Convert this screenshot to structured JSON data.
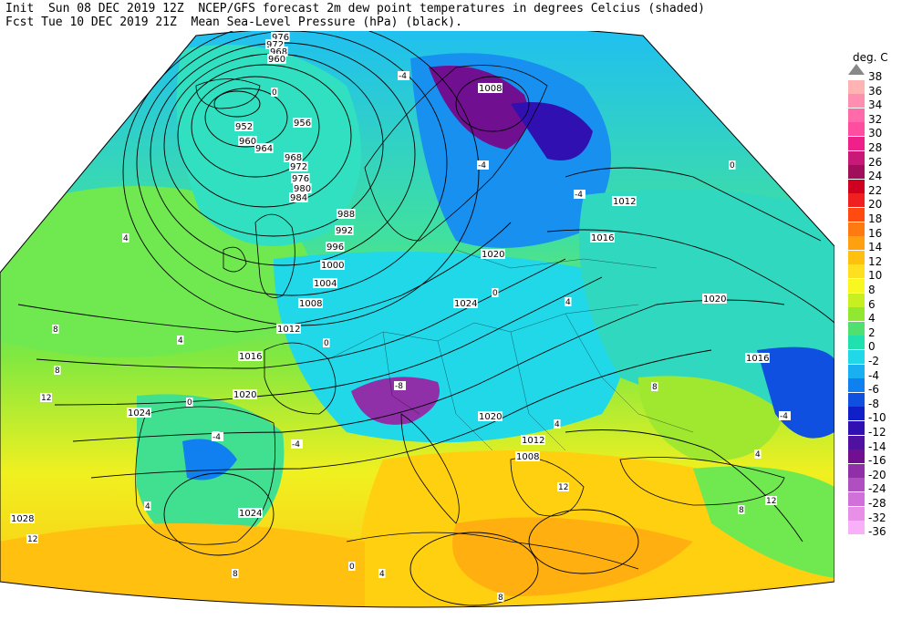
{
  "header": {
    "init_line": "Init  Sun 08 DEC 2019 12Z  NCEP/GFS forecast 2m dew point temperatures in degrees Celcius (shaded)",
    "fcst_line": "Fcst Tue 10 DEC 2019 21Z  Mean Sea-Level Pressure (hPa) (black)."
  },
  "legend": {
    "unit": "deg. C",
    "entries": [
      {
        "label": "38",
        "color": "#ffffff"
      },
      {
        "label": "36",
        "color": "#ffb3b3"
      },
      {
        "label": "34",
        "color": "#ff8fb0"
      },
      {
        "label": "32",
        "color": "#ff6aa8"
      },
      {
        "label": "30",
        "color": "#ff4da0"
      },
      {
        "label": "28",
        "color": "#f0208a"
      },
      {
        "label": "26",
        "color": "#c81878"
      },
      {
        "label": "24",
        "color": "#a0105a"
      },
      {
        "label": "22",
        "color": "#d00020"
      },
      {
        "label": "20",
        "color": "#f02020"
      },
      {
        "label": "18",
        "color": "#ff4a10"
      },
      {
        "label": "16",
        "color": "#ff7a10"
      },
      {
        "label": "14",
        "color": "#ffa010"
      },
      {
        "label": "12",
        "color": "#ffc010"
      },
      {
        "label": "10",
        "color": "#ffe020"
      },
      {
        "label": "8",
        "color": "#f8f820"
      },
      {
        "label": "6",
        "color": "#c8f020"
      },
      {
        "label": "4",
        "color": "#90e830"
      },
      {
        "label": "2",
        "color": "#50e070"
      },
      {
        "label": "0",
        "color": "#20e0b0"
      },
      {
        "label": "-2",
        "color": "#20d8e8"
      },
      {
        "label": "-4",
        "color": "#18b0f0"
      },
      {
        "label": "-6",
        "color": "#1080f0"
      },
      {
        "label": "-8",
        "color": "#1050e0"
      },
      {
        "label": "-10",
        "color": "#1020c8"
      },
      {
        "label": "-12",
        "color": "#3010b0"
      },
      {
        "label": "-14",
        "color": "#5010a0"
      },
      {
        "label": "-16",
        "color": "#701090"
      },
      {
        "label": "-20",
        "color": "#9030a8"
      },
      {
        "label": "-24",
        "color": "#b050c0"
      },
      {
        "label": "-28",
        "color": "#d070d8"
      },
      {
        "label": "-32",
        "color": "#e890e8"
      },
      {
        "label": "-36",
        "color": "#f8b0f8"
      }
    ]
  },
  "map": {
    "pressure_labels": [
      "976",
      "972",
      "968",
      "960",
      "952",
      "956",
      "960",
      "964",
      "968",
      "972",
      "976",
      "980",
      "984",
      "988",
      "992",
      "996",
      "1000",
      "1004",
      "1008",
      "1012",
      "1016",
      "1020",
      "1024",
      "1024",
      "1020",
      "1016",
      "1012",
      "1008",
      "1008",
      "1012",
      "1016",
      "1020",
      "1020",
      "1024",
      "1028"
    ],
    "temp_labels": [
      "4",
      "8",
      "12",
      "4",
      "8",
      "0",
      "4",
      "-4",
      "-4",
      "-4",
      "0",
      "-4",
      "-8",
      "0",
      "4",
      "8",
      "12",
      "4",
      "0",
      "-4",
      "4",
      "8",
      "12",
      "0",
      "-4",
      "4",
      "8",
      "12",
      "8",
      "4",
      "0"
    ]
  }
}
